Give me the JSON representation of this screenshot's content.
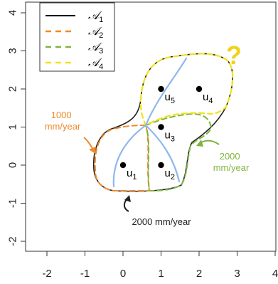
{
  "axes": {
    "x_ticks": [
      "-2",
      "-1",
      "0",
      "1",
      "2",
      "3",
      "4"
    ],
    "y_ticks": [
      "-2",
      "-1",
      "0",
      "1",
      "2",
      "3",
      "4"
    ],
    "x_range": [
      -2.2,
      4.15
    ],
    "y_range": [
      -2.2,
      4.15
    ]
  },
  "legend": {
    "entries": [
      {
        "name": "A1",
        "sub": "1",
        "color": "#000000",
        "style": "solid"
      },
      {
        "name": "A2",
        "sub": "2",
        "color": "#f08a2b",
        "style": "dashed"
      },
      {
        "name": "A3",
        "sub": "3",
        "color": "#7fb53f",
        "style": "dashed"
      },
      {
        "name": "A4",
        "sub": "4",
        "color": "#f2e21a",
        "style": "dashed"
      }
    ]
  },
  "points": [
    {
      "label": "u",
      "sub": "1",
      "x": 0.0,
      "y": 0.0
    },
    {
      "label": "u",
      "sub": "2",
      "x": 1.0,
      "y": 0.0
    },
    {
      "label": "u",
      "sub": "3",
      "x": 1.0,
      "y": 1.0
    },
    {
      "label": "u",
      "sub": "4",
      "x": 2.0,
      "y": 2.0
    },
    {
      "label": "u",
      "sub": "5",
      "x": 1.0,
      "y": 2.0
    }
  ],
  "annotations": {
    "left_rate": "1000\nmm/year",
    "right_rate": "2000\nmm/year",
    "bottom_rate": "2000 mm/year",
    "question": "?"
  },
  "colors": {
    "orange": "#f08a2b",
    "green": "#7fb53f",
    "yellow": "#f2e21a",
    "blue": "#8fb8ec",
    "black": "#222222",
    "dark_arrow": "#222222"
  }
}
